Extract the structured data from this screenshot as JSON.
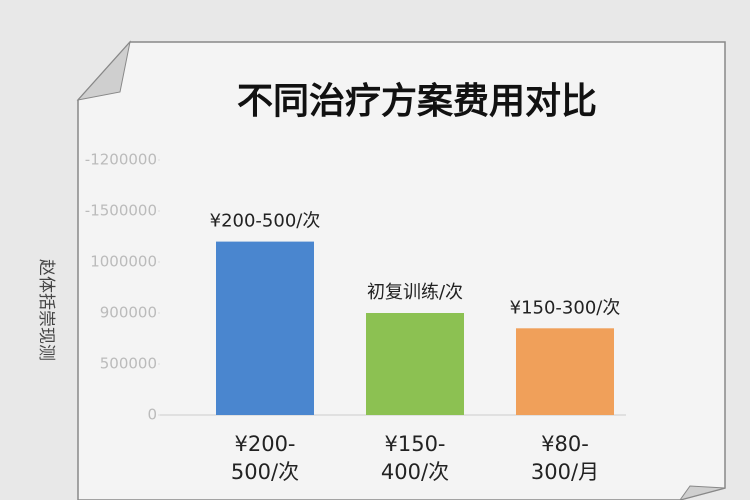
{
  "chart_data": {
    "type": "bar",
    "title": "不同治疗方案费用对比",
    "y_label": "赵体括崇现测",
    "categories": [
      "¥200-\n500/次",
      "¥150-\n400/次",
      "¥80-\n300/月"
    ],
    "values": [
      3.4,
      2.0,
      1.7
    ],
    "annotations": [
      "¥200-500/次",
      "初复训练/次",
      "¥150-300/次"
    ],
    "colors": [
      "#4a86cf",
      "#8cc152",
      "#f0a05a"
    ],
    "ylim": [
      0,
      5
    ],
    "yticks": [
      {
        "value": 0,
        "label": "0"
      },
      {
        "value": 1,
        "label": "500000"
      },
      {
        "value": 2,
        "label": "900000"
      },
      {
        "value": 3,
        "label": "1000000"
      },
      {
        "value": 4,
        "label": "-1500000"
      },
      {
        "value": 5,
        "label": "-1200000"
      }
    ],
    "grid": false
  }
}
